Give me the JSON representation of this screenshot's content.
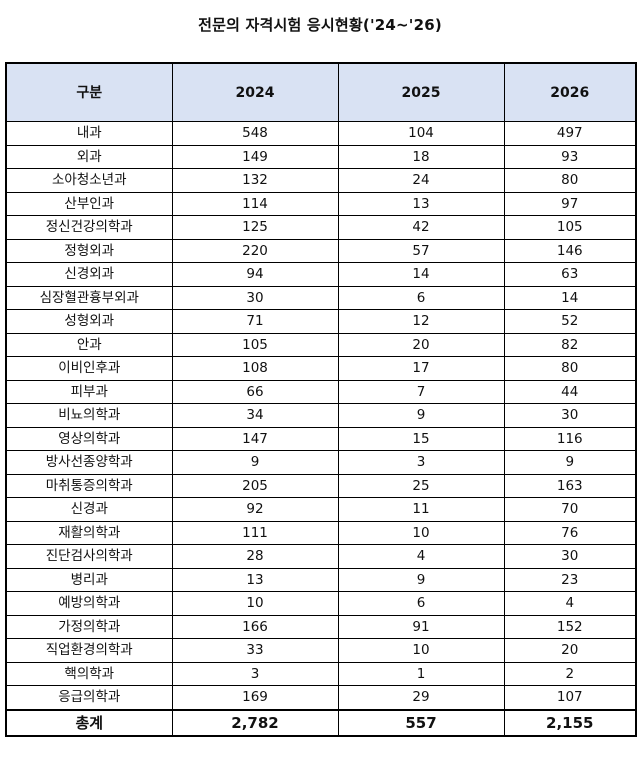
{
  "title": "전문의 자격시험 응시현황('24~'26)",
  "table": {
    "headers": [
      "구분",
      "2024",
      "2025",
      "2026"
    ],
    "rows": [
      [
        "내과",
        "548",
        "104",
        "497"
      ],
      [
        "외과",
        "149",
        "18",
        "93"
      ],
      [
        "소아청소년과",
        "132",
        "24",
        "80"
      ],
      [
        "산부인과",
        "114",
        "13",
        "97"
      ],
      [
        "정신건강의학과",
        "125",
        "42",
        "105"
      ],
      [
        "정형외과",
        "220",
        "57",
        "146"
      ],
      [
        "신경외과",
        "94",
        "14",
        "63"
      ],
      [
        "심장혈관흉부외과",
        "30",
        "6",
        "14"
      ],
      [
        "성형외과",
        "71",
        "12",
        "52"
      ],
      [
        "안과",
        "105",
        "20",
        "82"
      ],
      [
        "이비인후과",
        "108",
        "17",
        "80"
      ],
      [
        "피부과",
        "66",
        "7",
        "44"
      ],
      [
        "비뇨의학과",
        "34",
        "9",
        "30"
      ],
      [
        "영상의학과",
        "147",
        "15",
        "116"
      ],
      [
        "방사선종양학과",
        "9",
        "3",
        "9"
      ],
      [
        "마취통증의학과",
        "205",
        "25",
        "163"
      ],
      [
        "신경과",
        "92",
        "11",
        "70"
      ],
      [
        "재활의학과",
        "111",
        "10",
        "76"
      ],
      [
        "진단검사의학과",
        "28",
        "4",
        "30"
      ],
      [
        "병리과",
        "13",
        "9",
        "23"
      ],
      [
        "예방의학과",
        "10",
        "6",
        "4"
      ],
      [
        "가정의학과",
        "166",
        "91",
        "152"
      ],
      [
        "직업환경의학과",
        "33",
        "10",
        "20"
      ],
      [
        "핵의학과",
        "3",
        "1",
        "2"
      ],
      [
        "응급의학과",
        "169",
        "29",
        "107"
      ]
    ],
    "total": [
      "총계",
      "2,782",
      "557",
      "2,155"
    ]
  }
}
